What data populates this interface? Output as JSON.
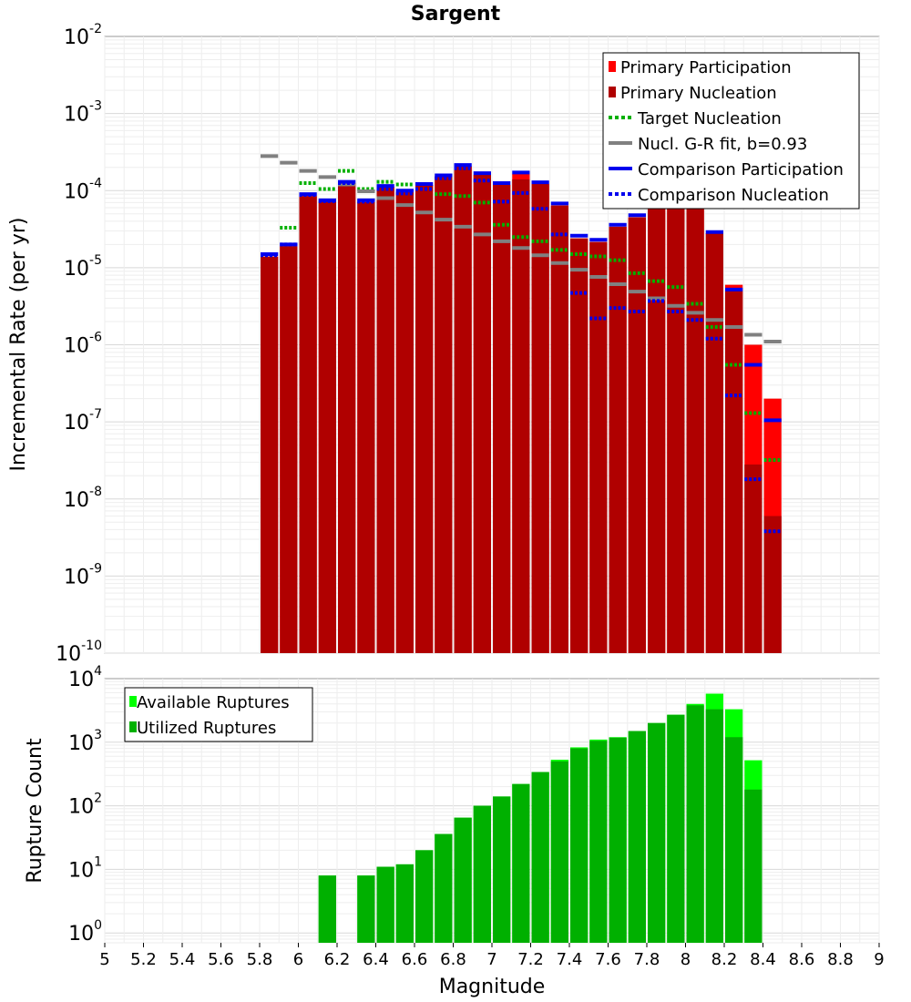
{
  "chart_data": [
    {
      "type": "bar",
      "title": "Sargent",
      "xlabel": "",
      "ylabel": "Incremental Rate (per yr)",
      "ylog": true,
      "ylim": [
        1e-10,
        0.01
      ],
      "y_ticks": [
        {
          "base": "10",
          "exp": "-10",
          "v": 1e-10
        },
        {
          "base": "10",
          "exp": "-9",
          "v": 1e-09
        },
        {
          "base": "10",
          "exp": "-8",
          "v": 1e-08
        },
        {
          "base": "10",
          "exp": "-7",
          "v": 1e-07
        },
        {
          "base": "10",
          "exp": "-6",
          "v": 1e-06
        },
        {
          "base": "10",
          "exp": "-5",
          "v": 1e-05
        },
        {
          "base": "10",
          "exp": "-4",
          "v": 0.0001
        },
        {
          "base": "10",
          "exp": "-3",
          "v": 0.001
        },
        {
          "base": "10",
          "exp": "-2",
          "v": 0.01
        }
      ],
      "xlim": [
        5,
        9
      ],
      "grid": true,
      "legend_position": "top-right",
      "x": [
        5.85,
        5.95,
        6.05,
        6.15,
        6.25,
        6.35,
        6.45,
        6.55,
        6.65,
        6.75,
        6.85,
        6.95,
        7.05,
        7.15,
        7.25,
        7.35,
        7.45,
        7.55,
        7.65,
        7.75,
        7.85,
        7.95,
        8.05,
        8.15,
        8.25,
        8.35,
        8.45
      ],
      "series": [
        {
          "name": "Primary Participation",
          "color": "#ff0000",
          "style": "bar",
          "values": [
            1.4e-05,
            1.9e-05,
            8.5e-05,
            7.2e-05,
            0.000125,
            7.1e-05,
            0.000111,
            9.6e-05,
            0.000118,
            0.000152,
            0.000207,
            0.00016,
            0.000119,
            0.000165,
            0.000122,
            6.4e-05,
            2.4e-05,
            2.15e-05,
            3.4e-05,
            4.5e-05,
            9.5e-05,
            6.4e-05,
            6.2e-05,
            2.8e-05,
            6e-06,
            1e-06,
            2e-07
          ]
        },
        {
          "name": "Primary Nucleation",
          "color": "#b00000",
          "style": "bar",
          "values": [
            1.4e-05,
            1.9e-05,
            8.5e-05,
            7.2e-05,
            0.000125,
            7.1e-05,
            0.000111,
            9.6e-05,
            0.000118,
            0.000152,
            0.000207,
            0.00016,
            0.000119,
            0.00014,
            0.000122,
            6.4e-05,
            2.4e-05,
            2.15e-05,
            3.4e-05,
            4.5e-05,
            7e-05,
            6.4e-05,
            6.2e-05,
            2.8e-05,
            5e-06,
            2.8e-08,
            6e-09
          ]
        },
        {
          "name": "Target Nucleation",
          "color": "#00b000",
          "style": "dotted",
          "values": [
            null,
            3.3e-05,
            0.000125,
            0.000105,
            0.00018,
            0.000105,
            0.00013,
            0.00012,
            0.000105,
            9e-05,
            8.5e-05,
            7e-05,
            3.6e-05,
            2.5e-05,
            2.2e-05,
            1.7e-05,
            1.5e-05,
            1.4e-05,
            1.25e-05,
            8.5e-06,
            6.7e-06,
            5.6e-06,
            3.4e-06,
            1.7e-06,
            5.5e-07,
            1.3e-07,
            3.2e-08
          ]
        },
        {
          "name": "Nucl. G-R fit, b=0.93",
          "color": "#808080",
          "style": "solid",
          "values": [
            0.00028,
            0.00023,
            0.00018,
            0.00015,
            0.00012,
            9.8e-05,
            8e-05,
            6.5e-05,
            5.2e-05,
            4.2e-05,
            3.4e-05,
            2.7e-05,
            2.2e-05,
            1.8e-05,
            1.45e-05,
            1.15e-05,
            9.4e-06,
            7.6e-06,
            6.1e-06,
            4.9e-06,
            4e-06,
            3.2e-06,
            2.6e-06,
            2.1e-06,
            1.7e-06,
            1.35e-06,
            1.1e-06
          ]
        },
        {
          "name": "Comparison Participation",
          "color": "#0000ee",
          "style": "solid",
          "values": [
            1.5e-05,
            2e-05,
            9e-05,
            7.5e-05,
            0.00013,
            7.5e-05,
            0.000115,
            0.0001,
            0.000122,
            0.000158,
            0.000215,
            0.000168,
            0.000125,
            0.000172,
            0.000128,
            6.8e-05,
            2.6e-05,
            2.3e-05,
            3.6e-05,
            4.8e-05,
            9e-05,
            6.4e-05,
            6.2e-05,
            2.9e-05,
            5.2e-06,
            5.5e-07,
            1.05e-07
          ]
        },
        {
          "name": "Comparison Nucleation",
          "color": "#0000ee",
          "style": "dotted",
          "values": [
            1.45e-05,
            2e-05,
            8.8e-05,
            7.3e-05,
            0.000125,
            7.2e-05,
            0.000105,
            9.2e-05,
            0.000105,
            0.000145,
            0.000195,
            0.000135,
            7.2e-05,
            9.3e-05,
            5.8e-05,
            2.7e-05,
            4.7e-06,
            2.2e-06,
            3e-06,
            2.7e-06,
            3.7e-06,
            2.7e-06,
            2.1e-06,
            1.2e-06,
            2.2e-07,
            1.8e-08,
            3.8e-09
          ]
        }
      ]
    },
    {
      "type": "bar",
      "title": "",
      "xlabel": "Magnitude",
      "ylabel": "Rupture Count",
      "ylog": true,
      "ylim": [
        0.7,
        10000
      ],
      "y_ticks": [
        {
          "base": "10",
          "exp": "0",
          "v": 1
        },
        {
          "base": "10",
          "exp": "1",
          "v": 10
        },
        {
          "base": "10",
          "exp": "2",
          "v": 100
        },
        {
          "base": "10",
          "exp": "3",
          "v": 1000
        },
        {
          "base": "10",
          "exp": "4",
          "v": 10000
        }
      ],
      "xlim": [
        5,
        9
      ],
      "x_ticks": [
        "5",
        "5.2",
        "5.4",
        "5.6",
        "5.8",
        "6",
        "6.2",
        "6.4",
        "6.6",
        "6.8",
        "7",
        "7.2",
        "7.4",
        "7.6",
        "7.8",
        "8",
        "8.2",
        "8.4",
        "8.6",
        "8.8",
        "9"
      ],
      "grid": true,
      "legend_position": "top-left",
      "x": [
        6.15,
        6.25,
        6.35,
        6.45,
        6.55,
        6.65,
        6.75,
        6.85,
        6.95,
        7.05,
        7.15,
        7.25,
        7.35,
        7.45,
        7.55,
        7.65,
        7.75,
        7.85,
        7.95,
        8.05,
        8.15,
        8.25,
        8.35
      ],
      "series": [
        {
          "name": "Available Ruptures",
          "color": "#00ff00",
          "style": "bar",
          "values": [
            8,
            null,
            8,
            11,
            12,
            20,
            36,
            65,
            100,
            140,
            220,
            340,
            530,
            830,
            1100,
            1200,
            1500,
            2000,
            2700,
            4000,
            5800,
            3300,
            520
          ]
        },
        {
          "name": "Utilized Ruptures",
          "color": "#00b000",
          "style": "bar",
          "values": [
            8,
            null,
            8,
            11,
            12,
            20,
            36,
            65,
            100,
            140,
            220,
            340,
            500,
            800,
            1050,
            1180,
            1500,
            2000,
            2700,
            3800,
            3300,
            1200,
            180
          ]
        }
      ]
    }
  ]
}
